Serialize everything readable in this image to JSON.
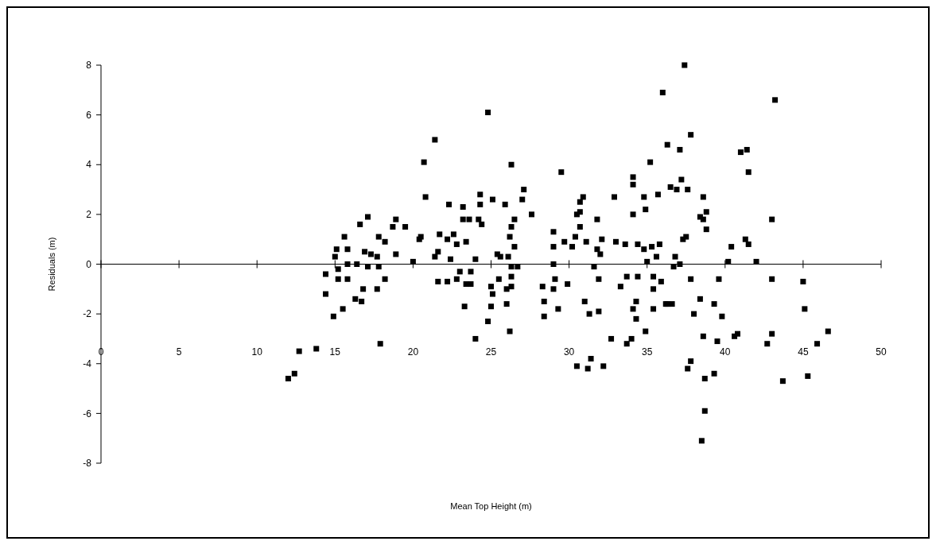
{
  "chart_data": {
    "type": "scatter",
    "xlabel": "Mean Top Height (m)",
    "ylabel": "Residuals (m)",
    "xlim": [
      0,
      50
    ],
    "xticks": [
      0,
      5,
      10,
      15,
      20,
      25,
      30,
      35,
      40,
      45,
      50
    ],
    "ylim": [
      -8,
      8
    ],
    "yticks": [
      -8,
      -6,
      -4,
      -2,
      0,
      2,
      4,
      6,
      8
    ],
    "marker": "square",
    "color": "#000000",
    "x": [
      12.0,
      12.4,
      12.7,
      13.8,
      14.4,
      14.4,
      14.9,
      15.1,
      15.0,
      15.2,
      15.2,
      15.5,
      15.6,
      15.8,
      15.8,
      15.8,
      16.3,
      16.7,
      16.4,
      16.6,
      17.1,
      16.8,
      16.9,
      17.3,
      17.1,
      17.7,
      17.7,
      17.8,
      17.8,
      17.9,
      18.2,
      18.2,
      18.7,
      18.9,
      18.9,
      19.5,
      20.0,
      20.4,
      20.5,
      20.8,
      20.7,
      21.4,
      21.6,
      21.4,
      21.7,
      21.6,
      22.2,
      22.3,
      22.2,
      22.6,
      22.4,
      22.8,
      23.0,
      22.8,
      23.2,
      23.2,
      23.6,
      23.4,
      23.7,
      23.4,
      23.7,
      23.3,
      24.0,
      24.2,
      24.3,
      24.3,
      24.4,
      24.0,
      24.8,
      25.1,
      25.4,
      25.6,
      25.5,
      25.0,
      25.1,
      25.0,
      24.8,
      25.9,
      26.3,
      26.1,
      26.3,
      26.7,
      26.3,
      26.0,
      26.3,
      26.0,
      26.2,
      26.5,
      26.3,
      26.2,
      26.5,
      27.1,
      27.0,
      27.6,
      28.3,
      28.4,
      28.4,
      29.0,
      29.1,
      29.0,
      29.0,
      29.0,
      29.3,
      29.5,
      29.7,
      29.9,
      30.2,
      30.4,
      30.7,
      30.5,
      30.7,
      30.7,
      30.9,
      31.1,
      31.0,
      31.3,
      30.5,
      31.4,
      31.2,
      32.2,
      31.8,
      32.0,
      32.1,
      31.8,
      31.6,
      31.9,
      31.9,
      32.7,
      32.9,
      33.0,
      33.3,
      33.6,
      33.7,
      33.7,
      34.0,
      34.1,
      34.1,
      34.1,
      34.4,
      34.4,
      34.3,
      34.1,
      34.3,
      34.8,
      34.9,
      34.8,
      35.0,
      34.9,
      35.2,
      35.3,
      35.4,
      35.4,
      35.4,
      35.6,
      35.7,
      35.8,
      35.9,
      36.2,
      36.3,
      36.0,
      36.3,
      36.6,
      37.1,
      37.4,
      37.8,
      36.5,
      36.9,
      37.2,
      37.6,
      37.3,
      37.5,
      36.8,
      36.7,
      37.1,
      37.8,
      38.4,
      38.0,
      37.8,
      37.6,
      38.6,
      38.8,
      38.4,
      38.6,
      38.8,
      38.6,
      38.7,
      38.7,
      38.5,
      39.3,
      39.3,
      39.5,
      39.6,
      39.8,
      40.2,
      40.4,
      40.8,
      40.6,
      41.0,
      41.4,
      41.5,
      41.3,
      41.5,
      42.0,
      42.7,
      43.0,
      43.0,
      43.0,
      43.2,
      43.7,
      45.0,
      45.1,
      45.3,
      45.9,
      46.6
    ],
    "values": [
      -4.6,
      -4.4,
      -3.5,
      -3.4,
      -0.4,
      -1.2,
      -2.1,
      0.6,
      0.3,
      -0.2,
      -0.6,
      -1.8,
      1.1,
      0.0,
      0.6,
      -0.6,
      -1.4,
      -1.5,
      0.0,
      1.6,
      1.9,
      -1.0,
      0.5,
      0.4,
      -0.1,
      0.3,
      -1.0,
      1.1,
      -0.1,
      -3.2,
      0.9,
      -0.6,
      1.5,
      1.8,
      0.4,
      1.5,
      0.1,
      1.0,
      1.1,
      2.7,
      4.1,
      5.0,
      0.5,
      0.3,
      1.2,
      -0.7,
      -0.7,
      2.4,
      1.0,
      1.2,
      0.2,
      0.8,
      -0.3,
      -0.6,
      2.3,
      1.8,
      1.8,
      0.9,
      -0.3,
      -0.8,
      -0.8,
      -1.7,
      -3.0,
      1.8,
      2.8,
      2.4,
      1.6,
      0.2,
      6.1,
      2.6,
      0.4,
      0.3,
      -0.6,
      -0.9,
      -1.2,
      -1.7,
      -2.3,
      2.4,
      4.0,
      0.3,
      -0.1,
      -0.1,
      -0.5,
      -1.0,
      -0.9,
      -1.6,
      -2.7,
      1.8,
      1.5,
      1.1,
      0.7,
      3.0,
      2.6,
      2.0,
      -0.9,
      -1.5,
      -2.1,
      -1.0,
      -0.6,
      0.0,
      0.7,
      1.3,
      -1.8,
      3.7,
      0.9,
      -0.8,
      0.7,
      1.1,
      1.5,
      2.0,
      2.1,
      2.5,
      2.7,
      0.9,
      -1.5,
      -2.0,
      -4.1,
      -3.8,
      -4.2,
      -4.1,
      0.6,
      0.4,
      1.0,
      1.8,
      -0.1,
      -0.6,
      -1.9,
      -3.0,
      2.7,
      0.9,
      -0.9,
      0.8,
      -0.5,
      -3.2,
      -3.0,
      3.5,
      3.2,
      2.0,
      0.8,
      -0.5,
      -1.5,
      -1.8,
      -2.2,
      2.7,
      2.2,
      0.6,
      0.1,
      -2.7,
      4.1,
      0.7,
      -0.5,
      -1.8,
      -1.0,
      0.3,
      2.8,
      0.8,
      -0.7,
      -1.6,
      4.8,
      6.9,
      -1.6,
      -1.6,
      4.6,
      8.0,
      5.2,
      3.1,
      3.0,
      3.4,
      3.0,
      1.0,
      1.1,
      0.3,
      -0.1,
      0.0,
      -0.6,
      -1.4,
      -2.0,
      -3.9,
      -4.2,
      2.7,
      2.1,
      1.9,
      1.8,
      1.4,
      -2.9,
      -4.6,
      -5.9,
      -7.1,
      -1.6,
      -4.4,
      -3.1,
      -0.6,
      -2.1,
      0.1,
      0.7,
      -2.8,
      -2.9,
      4.5,
      4.6,
      3.7,
      1.0,
      0.8,
      0.1,
      -3.2,
      -2.8,
      -0.6,
      1.8,
      6.6,
      -4.7,
      -0.7,
      -1.8,
      -4.5,
      -3.2,
      -2.7
    ]
  }
}
